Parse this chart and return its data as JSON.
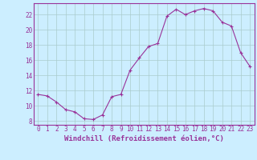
{
  "hours": [
    0,
    1,
    2,
    3,
    4,
    5,
    6,
    7,
    8,
    9,
    10,
    11,
    12,
    13,
    14,
    15,
    16,
    17,
    18,
    19,
    20,
    21,
    22,
    23
  ],
  "windchill": [
    11.5,
    11.3,
    10.5,
    9.5,
    9.2,
    8.3,
    8.2,
    8.8,
    11.2,
    11.5,
    14.7,
    16.3,
    17.8,
    18.2,
    21.8,
    22.7,
    22.0,
    22.5,
    22.8,
    22.5,
    21.0,
    20.5,
    17.0,
    15.2
  ],
  "line_color": "#993399",
  "marker": "+",
  "bg_color": "#cceeff",
  "grid_color": "#aacccc",
  "ylabel_values": [
    8,
    10,
    12,
    14,
    16,
    18,
    20,
    22
  ],
  "ylim": [
    7.5,
    23.5
  ],
  "xlim": [
    -0.5,
    23.5
  ],
  "xlabel": "Windchill (Refroidissement éolien,°C)",
  "tick_fontsize": 5.5,
  "label_fontsize": 6.5
}
